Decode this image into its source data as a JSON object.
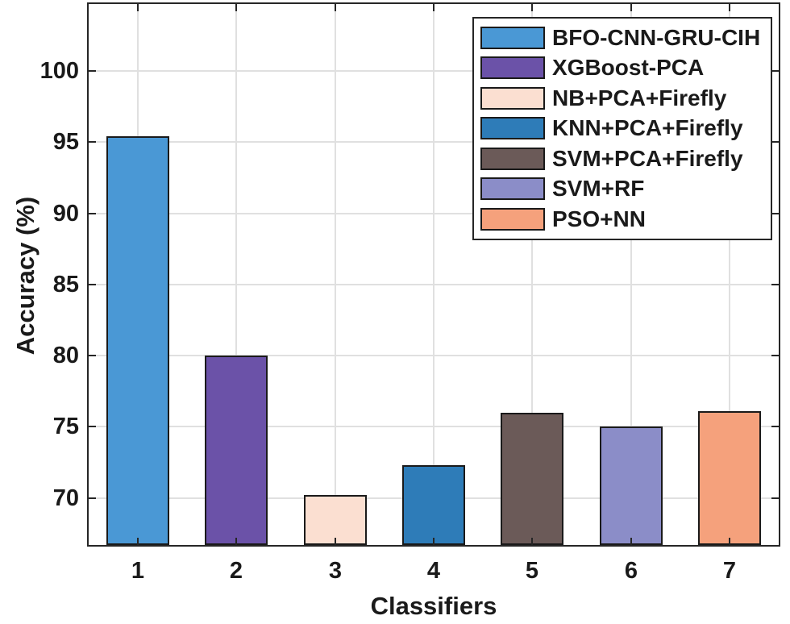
{
  "chart_data": {
    "type": "bar",
    "title": "",
    "xlabel": "Classifiers",
    "ylabel": "Accuracy (%)",
    "categories": [
      "1",
      "2",
      "3",
      "4",
      "5",
      "6",
      "7"
    ],
    "values": [
      95.4,
      80,
      70.2,
      72.3,
      76,
      75,
      76.1
    ],
    "series": [
      {
        "name": "BFO-CNN-GRU-CIH",
        "category": "1",
        "value": 95.4,
        "color": "#4a98d5"
      },
      {
        "name": "XGBoost-PCA",
        "category": "2",
        "value": 80,
        "color": "#6b52a8"
      },
      {
        "name": "NB+PCA+Firefly",
        "category": "3",
        "value": 70.2,
        "color": "#fbdfd1"
      },
      {
        "name": "KNN+PCA+Firefly",
        "category": "4",
        "value": 72.3,
        "color": "#2e7cb8"
      },
      {
        "name": "SVM+PCA+Firefly",
        "category": "5",
        "value": 76,
        "color": "#6b5a58"
      },
      {
        "name": "SVM+RF",
        "category": "6",
        "value": 75,
        "color": "#8b8dc8"
      },
      {
        "name": "PSO+NN",
        "category": "7",
        "value": 76.1,
        "color": "#f5a17c"
      }
    ],
    "legend": [
      {
        "label": "BFO-CNN-GRU-CIH",
        "color": "#4a98d5"
      },
      {
        "label": "XGBoost-PCA",
        "color": "#6b52a8"
      },
      {
        "label": "NB+PCA+Firefly",
        "color": "#fbdfd1"
      },
      {
        "label": "KNN+PCA+Firefly",
        "color": "#2e7cb8"
      },
      {
        "label": "SVM+PCA+Firefly",
        "color": "#6b5a58"
      },
      {
        "label": "SVM+RF",
        "color": "#8b8dc8"
      },
      {
        "label": "PSO+NN",
        "color": "#f5a17c"
      }
    ],
    "legend_position": "top-right",
    "yticks": [
      70,
      75,
      80,
      85,
      90,
      95,
      100
    ],
    "ylim": [
      66.7,
      104.7
    ],
    "grid": true,
    "bar_width_ratio": 0.64,
    "colors": {
      "edge": "#1a1a1a",
      "grid": "#e0e0e0",
      "axis": "#262626",
      "text": "#1a1a1a",
      "background": "#ffffff"
    }
  }
}
